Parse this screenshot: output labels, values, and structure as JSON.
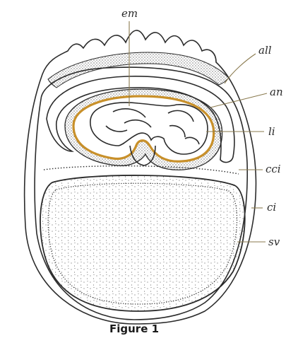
{
  "labels": {
    "em": "em",
    "all": "all",
    "an": "an",
    "li": "li",
    "cci": "cci",
    "ci": "ci",
    "sv": "sv"
  },
  "caption": "Figure 1",
  "colors": {
    "outline": "#2b2b2b",
    "amnion_highlight": "#c8902a",
    "leader_lines": "#8a7a4e",
    "background": "#ffffff"
  }
}
